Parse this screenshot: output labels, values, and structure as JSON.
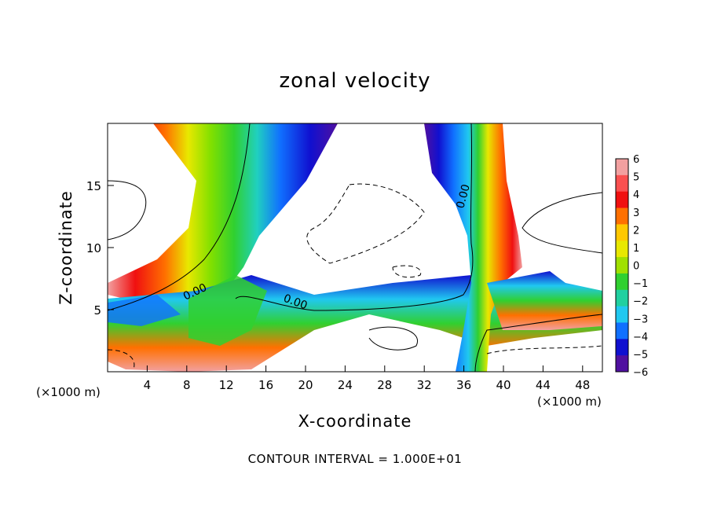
{
  "chart_data": {
    "type": "heatmap",
    "title": "zonal velocity",
    "xlabel": "X-coordinate",
    "ylabel": "Z-coordinate",
    "x_unit": "(×1000 m)",
    "xlim": [
      0,
      50
    ],
    "ylim": [
      0,
      20
    ],
    "x_ticks": [
      4,
      8,
      12,
      16,
      20,
      24,
      28,
      32,
      36,
      40,
      44,
      48
    ],
    "x_tick_labels": [
      "4",
      "8",
      "12",
      "16",
      "20",
      "24",
      "28",
      "32",
      "36",
      "40",
      "44",
      "48"
    ],
    "y_ticks": [
      5,
      10,
      15
    ],
    "y_tick_labels": [
      "5",
      "10",
      "15"
    ],
    "colorbar": {
      "levels": [
        6,
        5,
        4,
        3,
        2,
        1,
        0,
        -1,
        -2,
        -3,
        -4,
        -5,
        -6
      ],
      "labels": [
        "6",
        "5",
        "4",
        "3",
        "2",
        "1",
        "0",
        "−1",
        "−2",
        "−3",
        "−4",
        "−5",
        "−6"
      ],
      "colors": [
        "#f2a0a0",
        "#fa5050",
        "#f01010",
        "#ff7000",
        "#ffc800",
        "#e8e800",
        "#a0e000",
        "#30d030",
        "#20d0a0",
        "#20c8f0",
        "#1070ff",
        "#1010d0",
        "#5010a0"
      ]
    },
    "contour_labels": [
      "0.00",
      "0.00",
      "0.00"
    ],
    "contour_interval_note": "CONTOUR INTERVAL = 1.000E+01"
  }
}
